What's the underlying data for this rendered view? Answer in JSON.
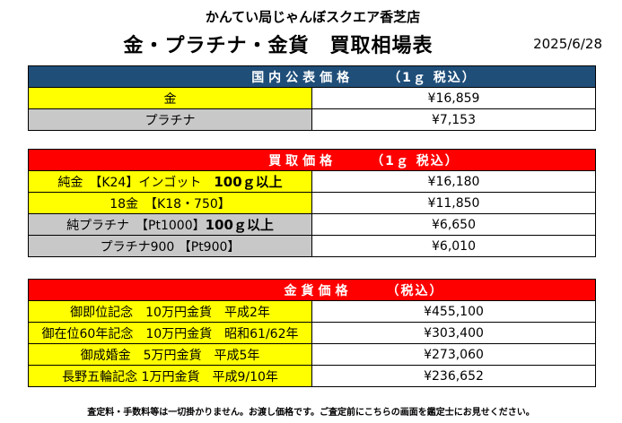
{
  "header": {
    "store_name": "かんてい局じゃんぼスクエア香芝店",
    "title": "金・プラチナ・金貨　買取相場表",
    "date": "2025/6/28"
  },
  "domestic": {
    "label": "国内公表価格",
    "unit": "（1ｇ 税込）",
    "rows": [
      {
        "name": "金",
        "price": "¥16,859"
      },
      {
        "name": "プラチナ",
        "price": "¥7,153"
      }
    ]
  },
  "purchase": {
    "label": "買取価格",
    "unit": "（1ｇ 税込）",
    "rows": [
      {
        "name": "純金　【K24】インゴット　",
        "note": "100ｇ以上",
        "price": "¥16,180"
      },
      {
        "name": "18金　【K18・750】",
        "price": "¥11,850"
      },
      {
        "name": "純プラチナ　【Pt1000】",
        "note": "100ｇ以上",
        "price": "¥6,650"
      },
      {
        "name": "プラチナ900 【Pt900】",
        "price": "¥6,010"
      }
    ]
  },
  "coins": {
    "label": "金貨価格",
    "unit": "（税込）",
    "rows": [
      {
        "name": "御即位記念　10万円金貨　平成2年",
        "price": "¥455,100"
      },
      {
        "name": "御在位60年記念　10万円金貨　昭和61/62年",
        "price": "¥303,400"
      },
      {
        "name": "御成婚金　5万円金貨　平成5年",
        "price": "¥273,060"
      },
      {
        "name": "長野五輪記念 1万円金貨　平成9/10年",
        "price": "¥236,652"
      }
    ]
  },
  "footer": {
    "note": "査定料・手数料等は一切掛かりません。お渡し価格です。ご査定前にこちらの画面を鑑定士にお見せください。"
  },
  "colors": {
    "domestic_header": "#1f4e79",
    "purchase_header": "#ff0000",
    "coins_header": "#ff0000",
    "gold_row": "#ffff00",
    "platinum_row": "#c8c8c8"
  }
}
